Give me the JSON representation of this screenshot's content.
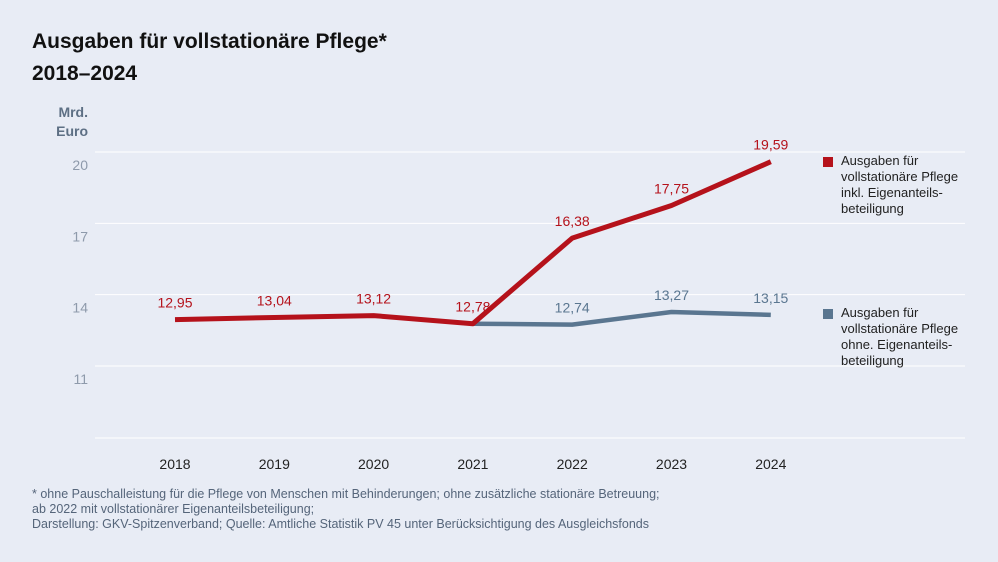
{
  "title_line1": "Ausgaben für vollstationäre Pflege*",
  "title_line2": "2018–2024",
  "unit_line1": "Mrd.",
  "unit_line2": "Euro",
  "chart_data": {
    "type": "line",
    "x": [
      "2018",
      "2019",
      "2020",
      "2021",
      "2022",
      "2023",
      "2024"
    ],
    "ylim": [
      8,
      20.5
    ],
    "yticks": [
      20,
      17,
      14,
      11
    ],
    "ylabel": "Mrd. Euro",
    "series": [
      {
        "name": "Ausgaben für vollstationäre Pflege inkl. Eigenanteilsbeteiligung",
        "color": "#b5121b",
        "values": [
          12.95,
          13.04,
          13.12,
          12.78,
          16.38,
          17.75,
          19.59
        ],
        "labels": [
          "12,95",
          "13,04",
          "13,12",
          "12,78",
          "16,38",
          "17,75",
          "19,59"
        ]
      },
      {
        "name": "Ausgaben für vollstationäre Pflege ohne. Eigenanteilsbeteiligung",
        "color": "#5a7690",
        "values": [
          null,
          null,
          null,
          12.78,
          12.74,
          13.27,
          13.15
        ],
        "labels": [
          null,
          null,
          null,
          null,
          "12,74",
          "13,27",
          "13,15"
        ]
      }
    ]
  },
  "legend": [
    {
      "lines": [
        "Ausgaben für",
        "vollstationäre Pflege",
        "inkl. Eigenanteils-",
        "beteiligung"
      ],
      "color": "#b5121b"
    },
    {
      "lines": [
        "Ausgaben für",
        "vollstationäre Pflege",
        "ohne. Eigenanteils-",
        "beteiligung"
      ],
      "color": "#5a7690"
    }
  ],
  "footnote": [
    "* ohne Pauschalleistung für die Pflege von Menschen mit Behinderungen; ohne zusätzliche stationäre Betreuung;",
    "ab 2022 mit vollstationärer Eigenanteilsbeteiligung;",
    "Darstellung: GKV-Spitzenverband; Quelle: Amtliche Statistik PV 45 unter Berücksichtigung des Ausgleichsfonds"
  ]
}
